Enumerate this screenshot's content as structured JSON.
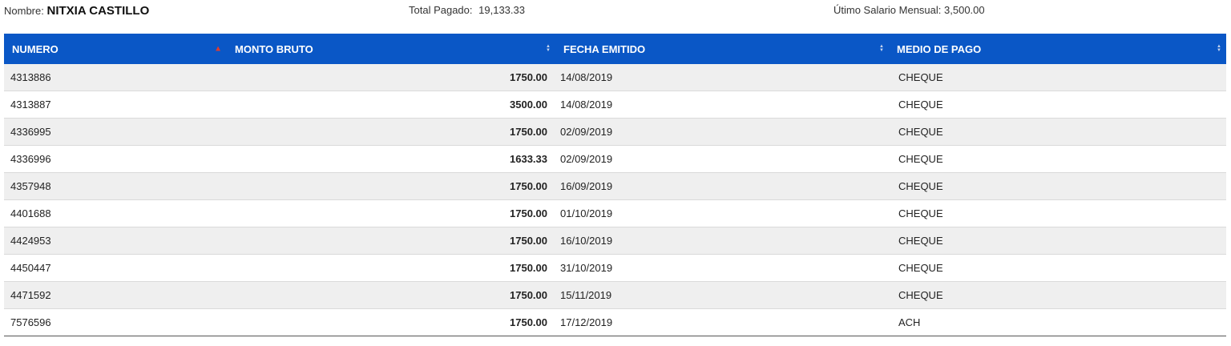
{
  "summary": {
    "name_label": "Nombre:",
    "name_value": "NITXIA CASTILLO",
    "total_label": "Total Pagado:",
    "total_value": "19,133.33",
    "salary_label": "Útimo Salario Mensual:",
    "salary_value": "3,500.00"
  },
  "table": {
    "columns": [
      {
        "label": "NUMERO",
        "sort": "asc"
      },
      {
        "label": "MONTO BRUTO",
        "sort": "none"
      },
      {
        "label": "FECHA EMITIDO",
        "sort": "none"
      },
      {
        "label": "MEDIO DE PAGO",
        "sort": "none"
      }
    ],
    "rows": [
      {
        "numero": "4313886",
        "monto": "1750.00",
        "fecha": "14/08/2019",
        "medio": "CHEQUE"
      },
      {
        "numero": "4313887",
        "monto": "3500.00",
        "fecha": "14/08/2019",
        "medio": "CHEQUE"
      },
      {
        "numero": "4336995",
        "monto": "1750.00",
        "fecha": "02/09/2019",
        "medio": "CHEQUE"
      },
      {
        "numero": "4336996",
        "monto": "1633.33",
        "fecha": "02/09/2019",
        "medio": "CHEQUE"
      },
      {
        "numero": "4357948",
        "monto": "1750.00",
        "fecha": "16/09/2019",
        "medio": "CHEQUE"
      },
      {
        "numero": "4401688",
        "monto": "1750.00",
        "fecha": "01/10/2019",
        "medio": "CHEQUE"
      },
      {
        "numero": "4424953",
        "monto": "1750.00",
        "fecha": "16/10/2019",
        "medio": "CHEQUE"
      },
      {
        "numero": "4450447",
        "monto": "1750.00",
        "fecha": "31/10/2019",
        "medio": "CHEQUE"
      },
      {
        "numero": "4471592",
        "monto": "1750.00",
        "fecha": "15/11/2019",
        "medio": "CHEQUE"
      },
      {
        "numero": "7576596",
        "monto": "1750.00",
        "fecha": "17/12/2019",
        "medio": "ACH"
      }
    ]
  },
  "colors": {
    "header_bg": "#0a57c6",
    "sort_active": "#e23b2e",
    "row_alt": "#efefef"
  }
}
